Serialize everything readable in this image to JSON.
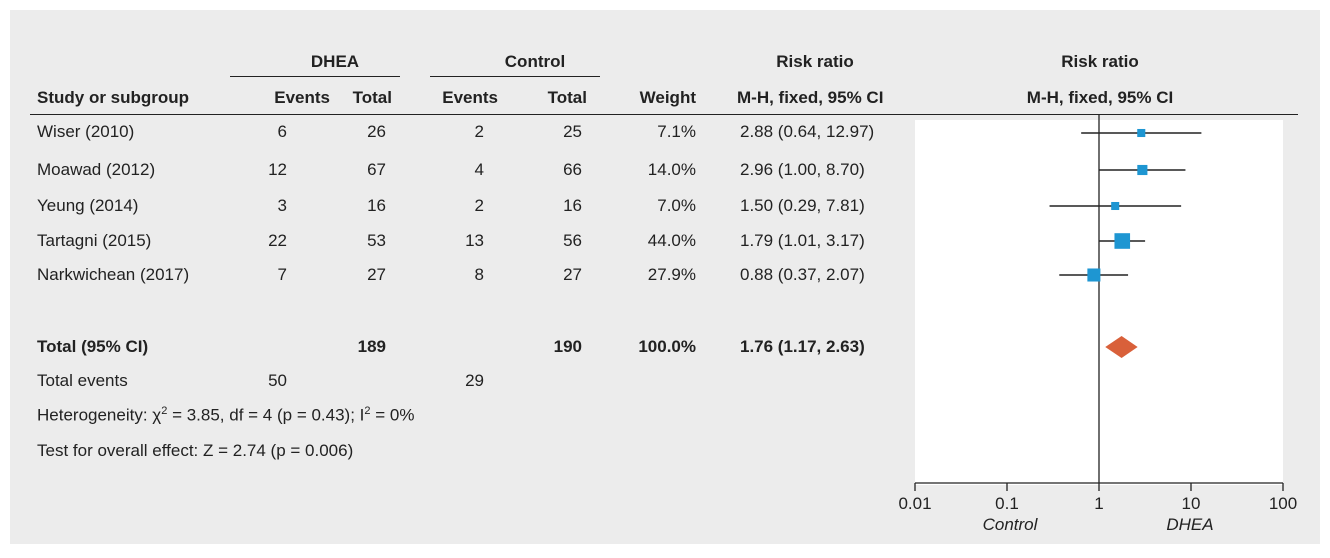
{
  "header": {
    "group1": "DHEA",
    "group2": "Control",
    "risk_ratio": "Risk ratio",
    "risk_ratio_plot": "Risk ratio",
    "study_col": "Study or subgroup",
    "events1": "Events",
    "total1": "Total",
    "events2": "Events",
    "total2": "Total",
    "weight": "Weight",
    "method": "M-H, fixed, 95% CI",
    "method_plot": "M-H, fixed, 95% CI"
  },
  "studies": [
    {
      "name": "Wiser (2010)",
      "e1": "6",
      "t1": "26",
      "e2": "2",
      "t2": "25",
      "weight": "7.1%",
      "rr": "2.88 (0.64, 12.97)"
    },
    {
      "name": "Moawad (2012)",
      "e1": "12",
      "t1": "67",
      "e2": "4",
      "t2": "66",
      "weight": "14.0%",
      "rr": "2.96 (1.00, 8.70)"
    },
    {
      "name": "Yeung (2014)",
      "e1": "3",
      "t1": "16",
      "e2": "2",
      "t2": "16",
      "weight": "7.0%",
      "rr": "1.50 (0.29, 7.81)"
    },
    {
      "name": "Tartagni (2015)",
      "e1": "22",
      "t1": "53",
      "e2": "13",
      "t2": "56",
      "weight": "44.0%",
      "rr": "1.79 (1.01, 3.17)"
    },
    {
      "name": "Narkwichean (2017)",
      "e1": "7",
      "t1": "27",
      "e2": "8",
      "t2": "27",
      "weight": "27.9%",
      "rr": "0.88 (0.37, 2.07)"
    }
  ],
  "total": {
    "label": "Total (95% CI)",
    "t1": "189",
    "t2": "190",
    "weight": "100.0%",
    "rr": "1.76 (1.17, 2.63)"
  },
  "events_row": {
    "label": "Total events",
    "e1": "50",
    "e2": "29"
  },
  "heterogeneity": {
    "prefix": "Heterogeneity: χ",
    "chi_exp": "2",
    "mid": " = 3.85, df = 4 (p = 0.43); I",
    "i_exp": "2",
    "suffix": " = 0%"
  },
  "overall_effect": "Test for overall effect: Z = 2.74 (p = 0.006)",
  "axis": {
    "favours_left": "Control",
    "favours_right": "DHEA"
  },
  "colors": {
    "panel": "#ececec",
    "study_marker": "#1e96d2",
    "total_diamond": "#d9603a",
    "line": "#222222"
  },
  "chart_data": {
    "type": "forest",
    "scale": "log",
    "xlim": [
      0.01,
      100
    ],
    "ticks": [
      0.01,
      0.1,
      1,
      10,
      100
    ],
    "tick_labels": [
      "0.01",
      "0.1",
      "1",
      "10",
      "100"
    ],
    "reference_line": 1,
    "studies": [
      {
        "name": "Wiser (2010)",
        "rr": 2.88,
        "lo": 0.64,
        "hi": 12.97,
        "weight": 7.1
      },
      {
        "name": "Moawad (2012)",
        "rr": 2.96,
        "lo": 1.0,
        "hi": 8.7,
        "weight": 14.0
      },
      {
        "name": "Yeung (2014)",
        "rr": 1.5,
        "lo": 0.29,
        "hi": 7.81,
        "weight": 7.0
      },
      {
        "name": "Tartagni (2015)",
        "rr": 1.79,
        "lo": 1.01,
        "hi": 3.17,
        "weight": 44.0
      },
      {
        "name": "Narkwichean (2017)",
        "rr": 0.88,
        "lo": 0.37,
        "hi": 2.07,
        "weight": 27.9
      }
    ],
    "total": {
      "rr": 1.76,
      "lo": 1.17,
      "hi": 2.63
    }
  }
}
